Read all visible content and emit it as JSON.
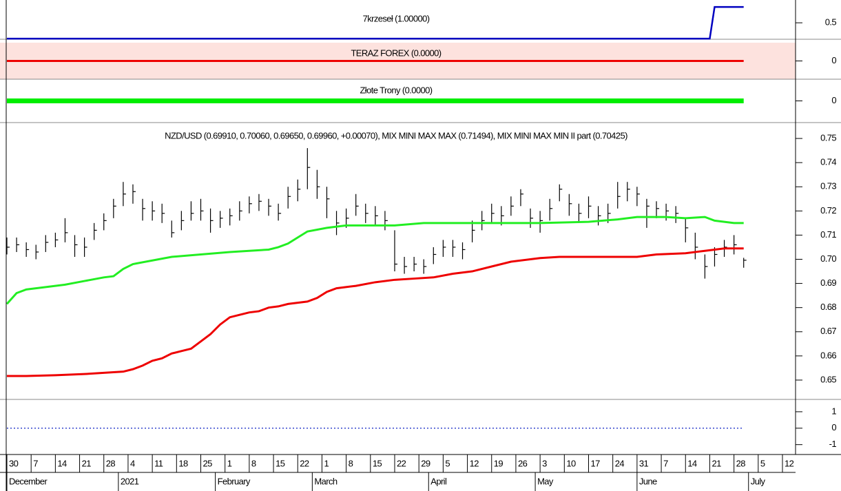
{
  "chart_data": [
    {
      "type": "line",
      "title": "7krzeseł (1.00000)",
      "xlim": [
        0,
        160
      ],
      "ylim": [
        -0.02,
        1.22
      ],
      "yticks": [
        0.5
      ],
      "series": [
        {
          "color": "#0000c0",
          "x": [
            0,
            145,
            146,
            152
          ],
          "values": [
            0,
            0,
            1,
            1
          ]
        }
      ]
    },
    {
      "type": "line",
      "title": "TERAZ FOREX (0.0000)",
      "background": "#fde2de",
      "xlim": [
        0,
        160
      ],
      "ylim": [
        -1,
        1
      ],
      "yticks": [
        0
      ],
      "series": [
        {
          "color": "#ee0000",
          "x": [
            0,
            152
          ],
          "values": [
            0,
            0
          ]
        }
      ]
    },
    {
      "type": "line",
      "title": "Złote Trony (0.0000)",
      "xlim": [
        0,
        160
      ],
      "ylim": [
        -1,
        1
      ],
      "yticks": [
        0
      ],
      "series": [
        {
          "color": "#00ee00",
          "x": [
            0,
            152
          ],
          "values": [
            0,
            0
          ]
        }
      ]
    },
    {
      "type": "ohlc",
      "title": "NZD/USD (0.69910, 0.70060, 0.69650, 0.69960, +0.00070), MIX MINI MAX MAX (0.71494), MIX MINI MAX MIN II part (0.70425)",
      "xlim": [
        0,
        160
      ],
      "ylim": [
        0.642,
        0.756
      ],
      "yticks": [
        0.65,
        0.66,
        0.67,
        0.68,
        0.69,
        {
          "value": 0.7,
          "label": "0.70"
        },
        0.71,
        0.72,
        0.73,
        0.74,
        0.75
      ],
      "x": [
        0,
        2,
        4,
        6,
        8,
        10,
        12,
        14,
        16,
        18,
        20,
        22,
        24,
        26,
        28,
        30,
        32,
        34,
        36,
        38,
        40,
        42,
        44,
        46,
        48,
        50,
        52,
        54,
        56,
        58,
        60,
        62,
        64,
        66,
        68,
        70,
        72,
        74,
        76,
        78,
        80,
        82,
        84,
        86,
        88,
        90,
        92,
        94,
        96,
        98,
        100,
        102,
        104,
        106,
        108,
        110,
        112,
        114,
        116,
        118,
        120,
        122,
        124,
        126,
        128,
        130,
        132,
        134,
        136,
        138,
        140,
        142,
        144,
        146,
        148,
        150,
        152
      ],
      "high": [
        0.709,
        0.709,
        0.707,
        0.706,
        0.71,
        0.711,
        0.717,
        0.71,
        0.709,
        0.715,
        0.719,
        0.725,
        0.732,
        0.731,
        0.725,
        0.724,
        0.723,
        0.716,
        0.72,
        0.724,
        0.725,
        0.721,
        0.72,
        0.721,
        0.724,
        0.726,
        0.727,
        0.725,
        0.723,
        0.73,
        0.733,
        0.746,
        0.737,
        0.73,
        0.72,
        0.721,
        0.727,
        0.723,
        0.722,
        0.72,
        0.712,
        0.701,
        0.701,
        0.7,
        0.705,
        0.708,
        0.708,
        0.707,
        0.716,
        0.72,
        0.723,
        0.722,
        0.726,
        0.729,
        0.721,
        0.72,
        0.725,
        0.731,
        0.727,
        0.723,
        0.726,
        0.722,
        0.723,
        0.732,
        0.732,
        0.73,
        0.725,
        0.724,
        0.723,
        0.722,
        0.717,
        0.711,
        0.702,
        0.705,
        0.708,
        0.71,
        0.7006
      ],
      "low": [
        0.702,
        0.703,
        0.701,
        0.7,
        0.703,
        0.705,
        0.707,
        0.701,
        0.701,
        0.708,
        0.712,
        0.717,
        0.722,
        0.723,
        0.716,
        0.716,
        0.715,
        0.709,
        0.712,
        0.716,
        0.716,
        0.711,
        0.713,
        0.714,
        0.716,
        0.719,
        0.72,
        0.718,
        0.716,
        0.721,
        0.724,
        0.729,
        0.725,
        0.717,
        0.71,
        0.713,
        0.718,
        0.715,
        0.714,
        0.712,
        0.695,
        0.694,
        0.695,
        0.694,
        0.698,
        0.701,
        0.701,
        0.7,
        0.707,
        0.712,
        0.715,
        0.714,
        0.718,
        0.722,
        0.713,
        0.711,
        0.716,
        0.724,
        0.718,
        0.715,
        0.717,
        0.714,
        0.715,
        0.721,
        0.724,
        0.722,
        0.713,
        0.717,
        0.716,
        0.715,
        0.707,
        0.7,
        0.692,
        0.697,
        0.701,
        0.702,
        0.6965
      ],
      "close": [
        0.705,
        0.706,
        0.704,
        0.703,
        0.707,
        0.708,
        0.711,
        0.706,
        0.705,
        0.712,
        0.716,
        0.722,
        0.727,
        0.728,
        0.721,
        0.72,
        0.719,
        0.711,
        0.716,
        0.719,
        0.72,
        0.716,
        0.717,
        0.718,
        0.72,
        0.723,
        0.724,
        0.722,
        0.719,
        0.726,
        0.729,
        0.738,
        0.73,
        0.725,
        0.715,
        0.717,
        0.722,
        0.719,
        0.718,
        0.716,
        0.698,
        0.697,
        0.698,
        0.697,
        0.702,
        0.705,
        0.705,
        0.704,
        0.712,
        0.716,
        0.719,
        0.718,
        0.722,
        0.727,
        0.717,
        0.716,
        0.721,
        0.729,
        0.723,
        0.719,
        0.722,
        0.718,
        0.719,
        0.726,
        0.729,
        0.727,
        0.722,
        0.721,
        0.72,
        0.719,
        0.713,
        0.705,
        0.697,
        0.702,
        0.705,
        0.706,
        0.6996
      ],
      "series": [
        {
          "color": "#22ee22",
          "x": [
            0,
            2,
            4,
            8,
            12,
            16,
            20,
            22,
            24,
            26,
            30,
            34,
            40,
            46,
            50,
            54,
            56,
            58,
            60,
            62,
            66,
            70,
            80,
            86,
            100,
            110,
            120,
            126,
            130,
            136,
            140,
            144,
            146,
            150,
            152
          ],
          "values": [
            0.6815,
            0.686,
            0.6875,
            0.6885,
            0.6895,
            0.691,
            0.6925,
            0.693,
            0.696,
            0.698,
            0.6995,
            0.701,
            0.702,
            0.703,
            0.7035,
            0.704,
            0.705,
            0.7065,
            0.709,
            0.7115,
            0.713,
            0.714,
            0.714,
            0.715,
            0.715,
            0.715,
            0.7155,
            0.7165,
            0.7175,
            0.7175,
            0.717,
            0.7175,
            0.716,
            0.715,
            0.715
          ]
        },
        {
          "color": "#ee0000",
          "x": [
            0,
            4,
            10,
            16,
            20,
            24,
            26,
            28,
            30,
            32,
            34,
            36,
            38,
            40,
            42,
            44,
            46,
            48,
            50,
            52,
            54,
            56,
            58,
            62,
            64,
            66,
            68,
            72,
            76,
            80,
            84,
            88,
            92,
            96,
            100,
            104,
            108,
            110,
            114,
            130,
            134,
            140,
            144,
            148,
            152
          ],
          "values": [
            0.6517,
            0.6517,
            0.652,
            0.6525,
            0.653,
            0.6535,
            0.6545,
            0.656,
            0.658,
            0.659,
            0.661,
            0.662,
            0.663,
            0.666,
            0.669,
            0.673,
            0.676,
            0.677,
            0.678,
            0.6785,
            0.68,
            0.6805,
            0.6815,
            0.6825,
            0.684,
            0.6865,
            0.688,
            0.689,
            0.6905,
            0.6915,
            0.692,
            0.6925,
            0.694,
            0.695,
            0.697,
            0.699,
            0.7,
            0.7005,
            0.701,
            0.701,
            0.702,
            0.7025,
            0.7035,
            0.7045,
            0.7045
          ]
        }
      ],
      "xticks": [
        {
          "value": 0,
          "label": "30"
        },
        {
          "value": 5,
          "label": "7"
        },
        {
          "value": 10,
          "label": "14"
        },
        {
          "value": 15,
          "label": "21"
        },
        {
          "value": 20,
          "label": "28"
        },
        {
          "value": 25,
          "label": "4"
        },
        {
          "value": 30,
          "label": "11"
        },
        {
          "value": 35,
          "label": "18"
        },
        {
          "value": 40,
          "label": "25"
        },
        {
          "value": 45,
          "label": "1"
        },
        {
          "value": 50,
          "label": "8"
        },
        {
          "value": 55,
          "label": "15"
        },
        {
          "value": 60,
          "label": "22"
        },
        {
          "value": 65,
          "label": "1"
        },
        {
          "value": 70,
          "label": "8"
        },
        {
          "value": 75,
          "label": "15"
        },
        {
          "value": 80,
          "label": "22"
        },
        {
          "value": 85,
          "label": "29"
        },
        {
          "value": 90,
          "label": "5"
        },
        {
          "value": 95,
          "label": "12"
        },
        {
          "value": 100,
          "label": "19"
        },
        {
          "value": 105,
          "label": "26"
        },
        {
          "value": 110,
          "label": "3"
        },
        {
          "value": 115,
          "label": "10"
        },
        {
          "value": 120,
          "label": "17"
        },
        {
          "value": 125,
          "label": "24"
        },
        {
          "value": 130,
          "label": "31"
        },
        {
          "value": 135,
          "label": "7"
        },
        {
          "value": 140,
          "label": "14"
        },
        {
          "value": 145,
          "label": "21"
        },
        {
          "value": 150,
          "label": "28"
        },
        {
          "value": 155,
          "label": "5"
        },
        {
          "value": 160,
          "label": "12"
        }
      ],
      "month_ticks": [
        {
          "value": 0,
          "label": "December"
        },
        {
          "value": 23,
          "label": "2021"
        },
        {
          "value": 43,
          "label": "February"
        },
        {
          "value": 63,
          "label": "March"
        },
        {
          "value": 87,
          "label": "April"
        },
        {
          "value": 109,
          "label": "May"
        },
        {
          "value": 130,
          "label": "June"
        },
        {
          "value": 153,
          "label": "July"
        }
      ]
    },
    {
      "type": "line",
      "xlim": [
        0,
        160
      ],
      "ylim": [
        -1.6,
        1.75
      ],
      "yticks": [
        1,
        0,
        -1
      ],
      "series": [
        {
          "color": "#3344cc",
          "style": "dotted",
          "x": [
            0,
            152
          ],
          "values": [
            0,
            0
          ]
        }
      ]
    }
  ]
}
